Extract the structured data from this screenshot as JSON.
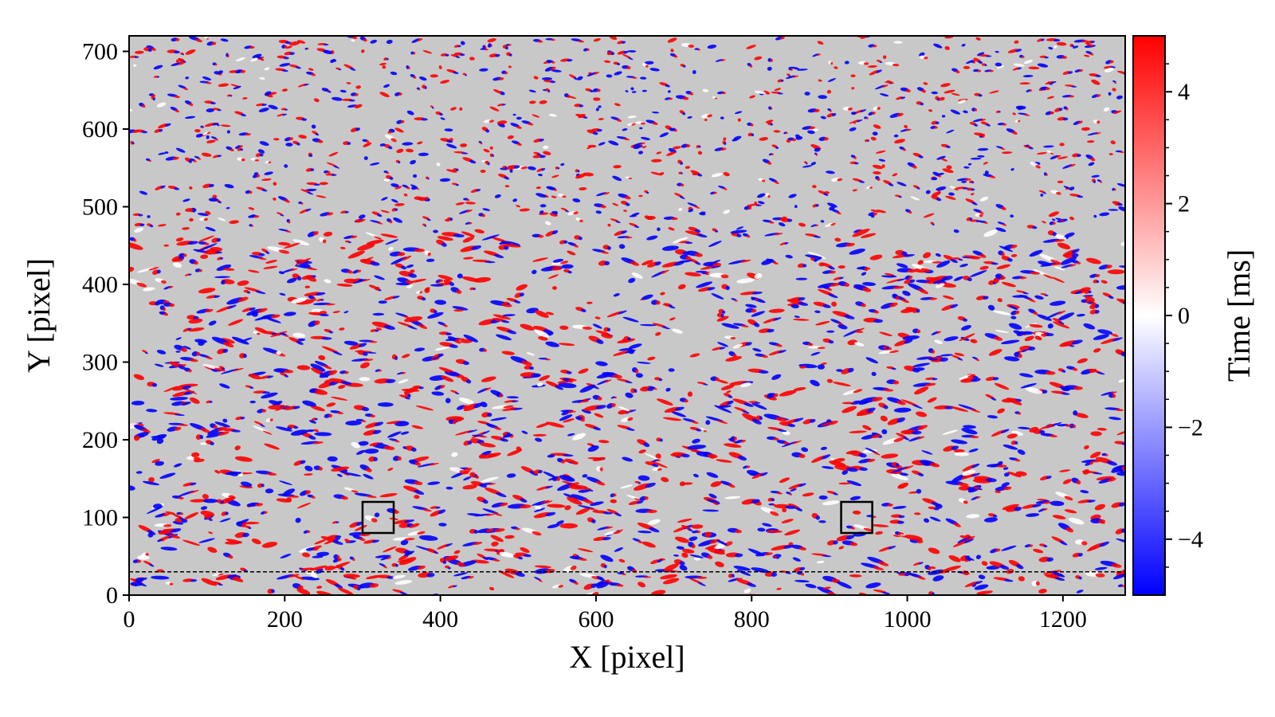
{
  "chart_data": {
    "type": "heatmap",
    "title": "",
    "xlabel": "X [pixel]",
    "ylabel": "Y [pixel]",
    "xlim": [
      0,
      1280
    ],
    "ylim": [
      0,
      720
    ],
    "x_ticks": [
      0,
      200,
      400,
      600,
      800,
      1000,
      1200
    ],
    "y_ticks": [
      0,
      100,
      200,
      300,
      400,
      500,
      600,
      700
    ],
    "background_color": "#c8c8c8",
    "colormap": "bwr",
    "colors": {
      "negative": "#0000ff",
      "zero": "#ffffff",
      "positive": "#ff0000"
    },
    "colorbar": {
      "label": "Time [ms]",
      "range": [
        -5,
        5
      ],
      "ticks": [
        -4,
        -2,
        0,
        2,
        4
      ],
      "tick_labels": [
        "−4",
        "−2",
        "0",
        "2",
        "4"
      ],
      "minor_ticks": [
        -4.5,
        -3.5,
        -3,
        -2.5,
        -1.5,
        -1,
        -0.5,
        0.5,
        1,
        1.5,
        2.5,
        3,
        3.5,
        4.5
      ]
    },
    "annotations": [
      {
        "kind": "rectangle",
        "x": [
          300,
          340
        ],
        "y": [
          80,
          120
        ]
      },
      {
        "kind": "rectangle",
        "x": [
          915,
          955
        ],
        "y": [
          80,
          120
        ]
      },
      {
        "kind": "dashed-hline",
        "y": 30
      }
    ]
  }
}
